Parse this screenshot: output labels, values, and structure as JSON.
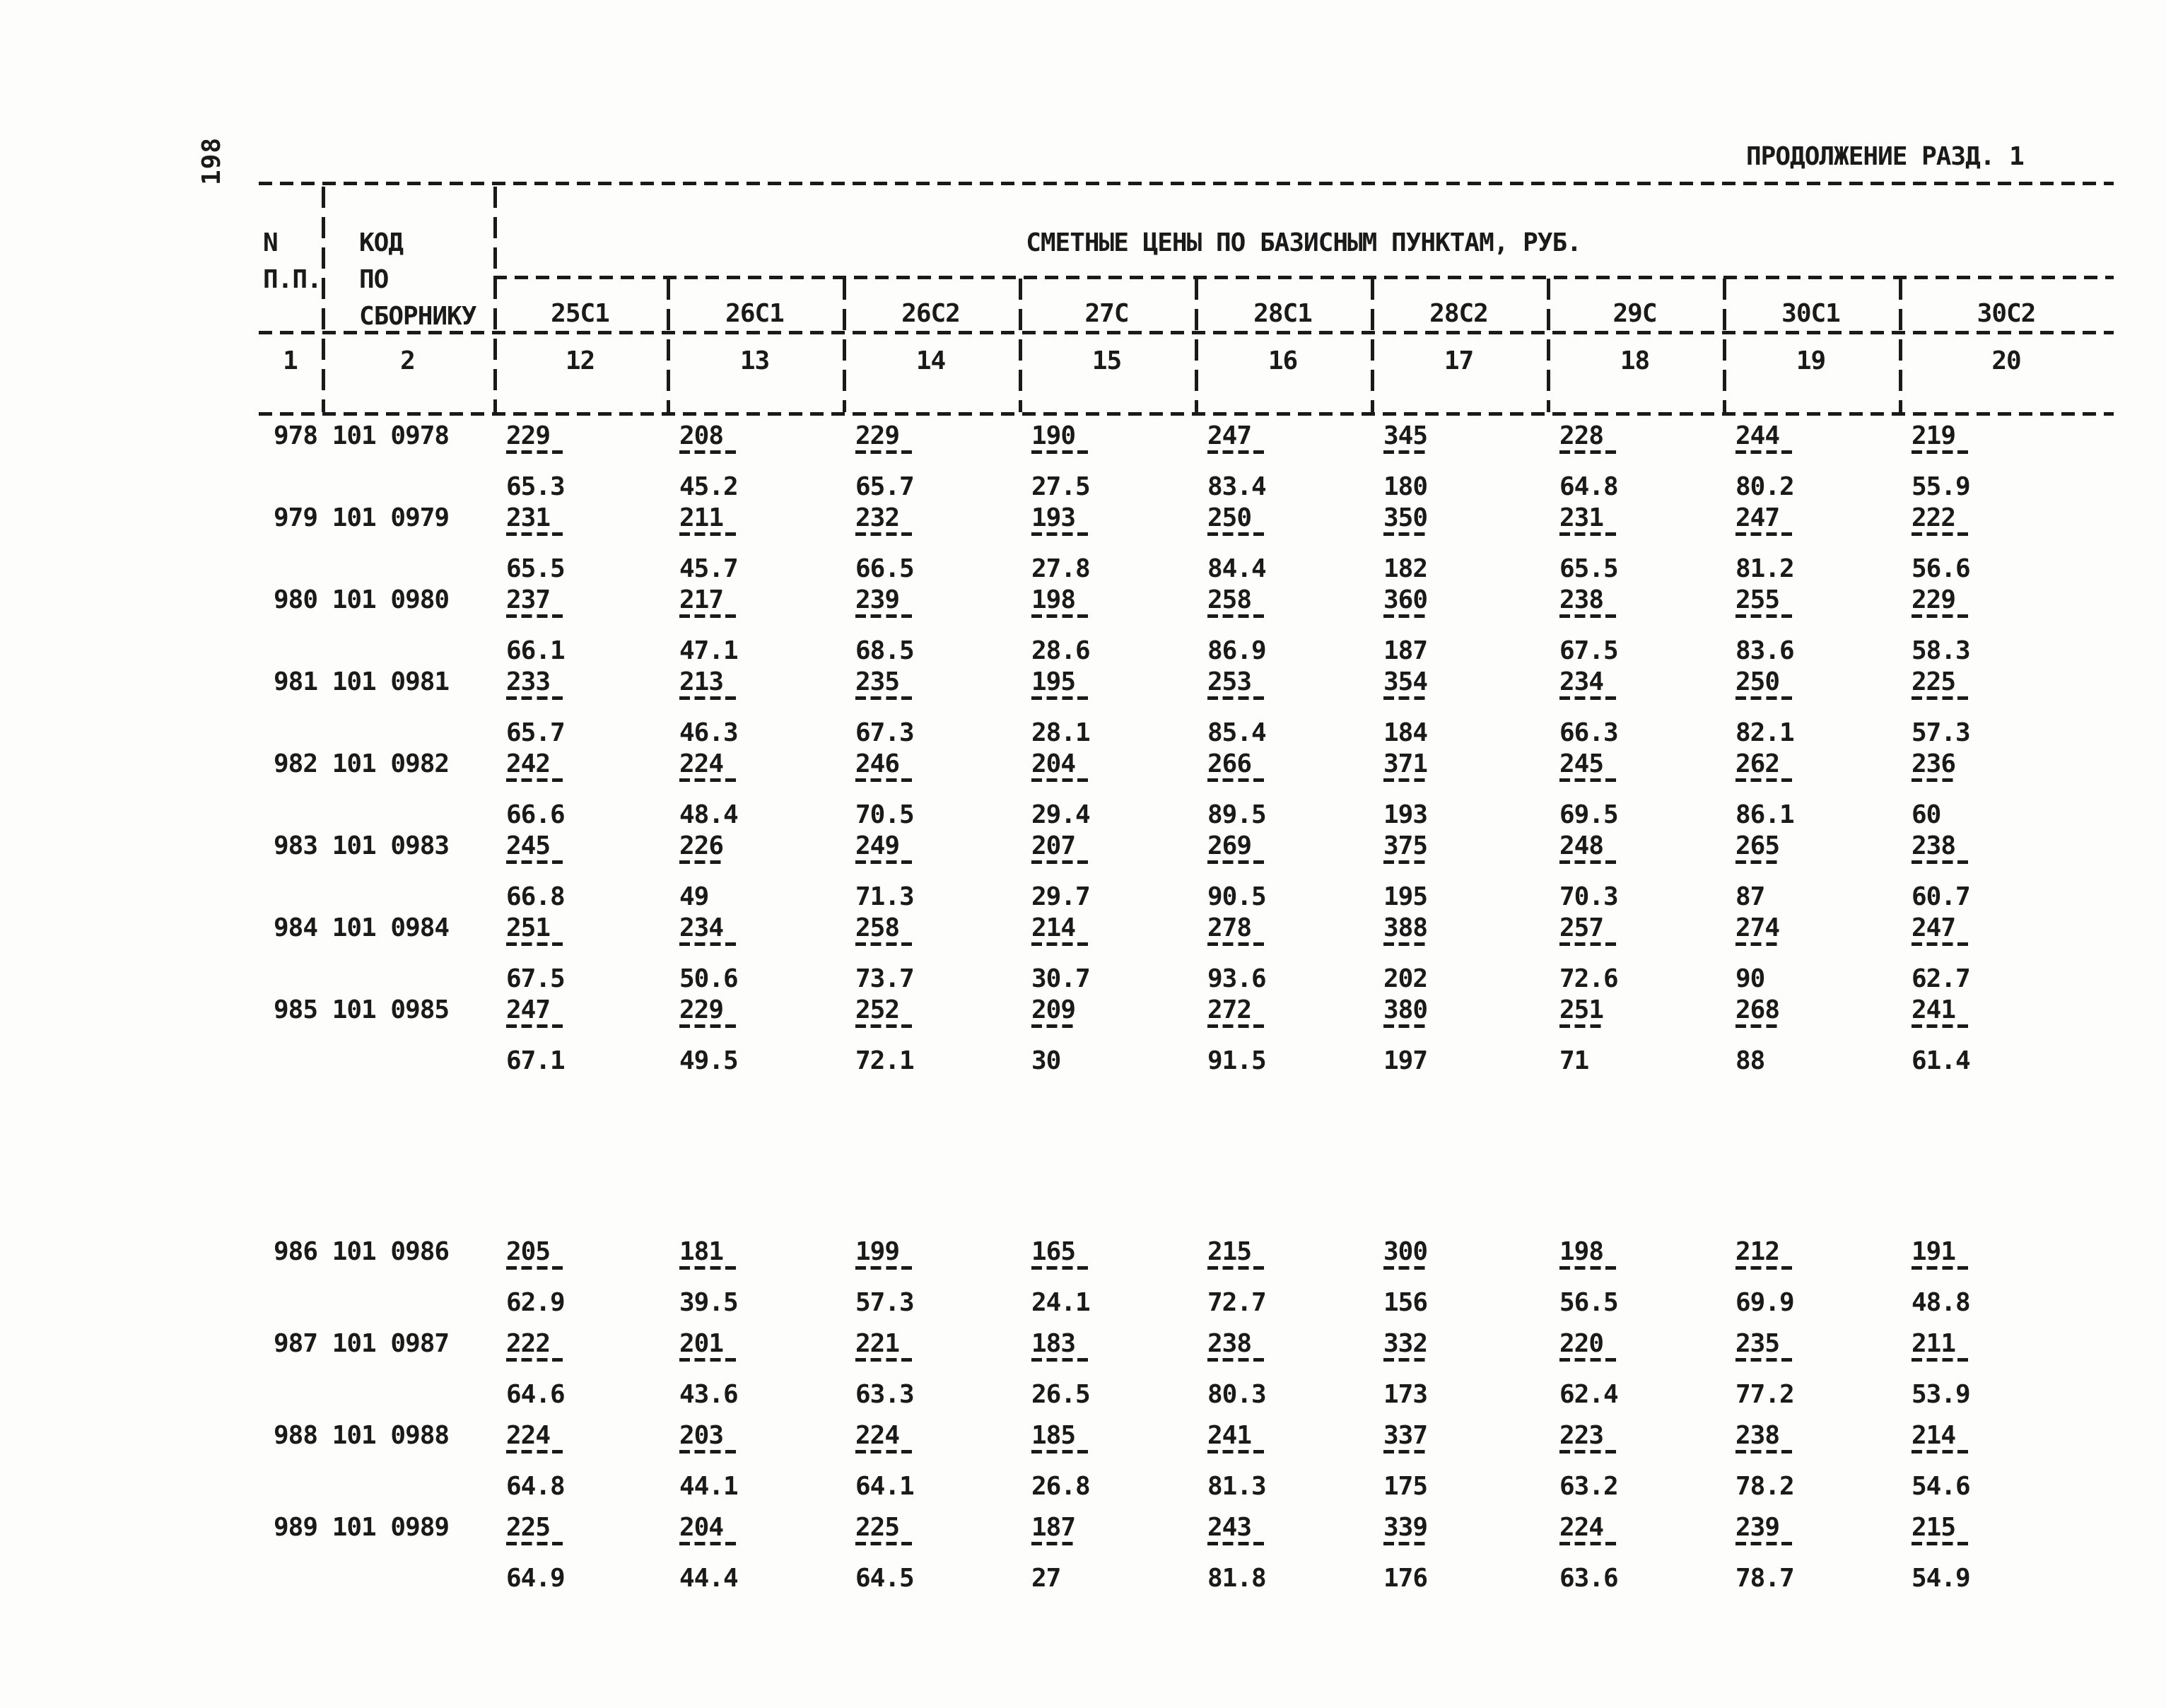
{
  "page": {
    "number": "198",
    "continuation": "ПРОДОЛЖЕНИЕ РАЗД. 1"
  },
  "table": {
    "col1_header": [
      "N",
      "П.П."
    ],
    "col1_colnum": "1",
    "col2_header": [
      "КОД",
      "ПО",
      "СБОРНИКУ"
    ],
    "col2_colnum": "2",
    "prices_title": "СМЕТНЫЕ ЦЕНЫ ПО БАЗИСНЫМ ПУНКТАМ, РУБ.",
    "columns": [
      {
        "label": "25С1",
        "colnum": "12"
      },
      {
        "label": "26С1",
        "colnum": "13"
      },
      {
        "label": "26С2",
        "colnum": "14"
      },
      {
        "label": "27С",
        "colnum": "15"
      },
      {
        "label": "28С1",
        "colnum": "16"
      },
      {
        "label": "28С2",
        "colnum": "17"
      },
      {
        "label": "29С",
        "colnum": "18"
      },
      {
        "label": "30С1",
        "colnum": "19"
      },
      {
        "label": "30С2",
        "colnum": "20"
      }
    ],
    "rows": [
      {
        "id": "978 101 0978",
        "cells": [
          {
            "n": "229",
            "d": "65.3"
          },
          {
            "n": "208",
            "d": "45.2"
          },
          {
            "n": "229",
            "d": "65.7"
          },
          {
            "n": "190",
            "d": "27.5"
          },
          {
            "n": "247",
            "d": "83.4"
          },
          {
            "n": "345",
            "d": "180"
          },
          {
            "n": "228",
            "d": "64.8"
          },
          {
            "n": "244",
            "d": "80.2"
          },
          {
            "n": "219",
            "d": "55.9"
          }
        ]
      },
      {
        "id": "979 101 0979",
        "cells": [
          {
            "n": "231",
            "d": "65.5"
          },
          {
            "n": "211",
            "d": "45.7"
          },
          {
            "n": "232",
            "d": "66.5"
          },
          {
            "n": "193",
            "d": "27.8"
          },
          {
            "n": "250",
            "d": "84.4"
          },
          {
            "n": "350",
            "d": "182"
          },
          {
            "n": "231",
            "d": "65.5"
          },
          {
            "n": "247",
            "d": "81.2"
          },
          {
            "n": "222",
            "d": "56.6"
          }
        ]
      },
      {
        "id": "980 101 0980",
        "cells": [
          {
            "n": "237",
            "d": "66.1"
          },
          {
            "n": "217",
            "d": "47.1"
          },
          {
            "n": "239",
            "d": "68.5"
          },
          {
            "n": "198",
            "d": "28.6"
          },
          {
            "n": "258",
            "d": "86.9"
          },
          {
            "n": "360",
            "d": "187"
          },
          {
            "n": "238",
            "d": "67.5"
          },
          {
            "n": "255",
            "d": "83.6"
          },
          {
            "n": "229",
            "d": "58.3"
          }
        ]
      },
      {
        "id": "981 101 0981",
        "cells": [
          {
            "n": "233",
            "d": "65.7"
          },
          {
            "n": "213",
            "d": "46.3"
          },
          {
            "n": "235",
            "d": "67.3"
          },
          {
            "n": "195",
            "d": "28.1"
          },
          {
            "n": "253",
            "d": "85.4"
          },
          {
            "n": "354",
            "d": "184"
          },
          {
            "n": "234",
            "d": "66.3"
          },
          {
            "n": "250",
            "d": "82.1"
          },
          {
            "n": "225",
            "d": "57.3"
          }
        ]
      },
      {
        "id": "982 101 0982",
        "cells": [
          {
            "n": "242",
            "d": "66.6"
          },
          {
            "n": "224",
            "d": "48.4"
          },
          {
            "n": "246",
            "d": "70.5"
          },
          {
            "n": "204",
            "d": "29.4"
          },
          {
            "n": "266",
            "d": "89.5"
          },
          {
            "n": "371",
            "d": "193"
          },
          {
            "n": "245",
            "d": "69.5"
          },
          {
            "n": "262",
            "d": "86.1"
          },
          {
            "n": "236",
            "d": "60"
          }
        ]
      },
      {
        "id": "983 101 0983",
        "cells": [
          {
            "n": "245",
            "d": "66.8"
          },
          {
            "n": "226",
            "d": "49"
          },
          {
            "n": "249",
            "d": "71.3"
          },
          {
            "n": "207",
            "d": "29.7"
          },
          {
            "n": "269",
            "d": "90.5"
          },
          {
            "n": "375",
            "d": "195"
          },
          {
            "n": "248",
            "d": "70.3"
          },
          {
            "n": "265",
            "d": "87"
          },
          {
            "n": "238",
            "d": "60.7"
          }
        ]
      },
      {
        "id": "984 101 0984",
        "cells": [
          {
            "n": "251",
            "d": "67.5"
          },
          {
            "n": "234",
            "d": "50.6"
          },
          {
            "n": "258",
            "d": "73.7"
          },
          {
            "n": "214",
            "d": "30.7"
          },
          {
            "n": "278",
            "d": "93.6"
          },
          {
            "n": "388",
            "d": "202"
          },
          {
            "n": "257",
            "d": "72.6"
          },
          {
            "n": "274",
            "d": "90"
          },
          {
            "n": "247",
            "d": "62.7"
          }
        ]
      },
      {
        "id": "985 101 0985",
        "cells": [
          {
            "n": "247",
            "d": "67.1"
          },
          {
            "n": "229",
            "d": "49.5"
          },
          {
            "n": "252",
            "d": "72.1"
          },
          {
            "n": "209",
            "d": "30"
          },
          {
            "n": "272",
            "d": "91.5"
          },
          {
            "n": "380",
            "d": "197"
          },
          {
            "n": "251",
            "d": "71"
          },
          {
            "n": "268",
            "d": "88"
          },
          {
            "n": "241",
            "d": "61.4"
          }
        ]
      },
      {
        "id": "986 101 0986",
        "cells": [
          {
            "n": "205",
            "d": "62.9"
          },
          {
            "n": "181",
            "d": "39.5"
          },
          {
            "n": "199",
            "d": "57.3"
          },
          {
            "n": "165",
            "d": "24.1"
          },
          {
            "n": "215",
            "d": "72.7"
          },
          {
            "n": "300",
            "d": "156"
          },
          {
            "n": "198",
            "d": "56.5"
          },
          {
            "n": "212",
            "d": "69.9"
          },
          {
            "n": "191",
            "d": "48.8"
          }
        ]
      },
      {
        "id": "987 101 0987",
        "cells": [
          {
            "n": "222",
            "d": "64.6"
          },
          {
            "n": "201",
            "d": "43.6"
          },
          {
            "n": "221",
            "d": "63.3"
          },
          {
            "n": "183",
            "d": "26.5"
          },
          {
            "n": "238",
            "d": "80.3"
          },
          {
            "n": "332",
            "d": "173"
          },
          {
            "n": "220",
            "d": "62.4"
          },
          {
            "n": "235",
            "d": "77.2"
          },
          {
            "n": "211",
            "d": "53.9"
          }
        ]
      },
      {
        "id": "988 101 0988",
        "cells": [
          {
            "n": "224",
            "d": "64.8"
          },
          {
            "n": "203",
            "d": "44.1"
          },
          {
            "n": "224",
            "d": "64.1"
          },
          {
            "n": "185",
            "d": "26.8"
          },
          {
            "n": "241",
            "d": "81.3"
          },
          {
            "n": "337",
            "d": "175"
          },
          {
            "n": "223",
            "d": "63.2"
          },
          {
            "n": "238",
            "d": "78.2"
          },
          {
            "n": "214",
            "d": "54.6"
          }
        ]
      },
      {
        "id": "989 101 0989",
        "cells": [
          {
            "n": "225",
            "d": "64.9"
          },
          {
            "n": "204",
            "d": "44.4"
          },
          {
            "n": "225",
            "d": "64.5"
          },
          {
            "n": "187",
            "d": "27"
          },
          {
            "n": "243",
            "d": "81.8"
          },
          {
            "n": "339",
            "d": "176"
          },
          {
            "n": "224",
            "d": "63.6"
          },
          {
            "n": "239",
            "d": "78.7"
          },
          {
            "n": "215",
            "d": "54.9"
          }
        ]
      }
    ]
  }
}
